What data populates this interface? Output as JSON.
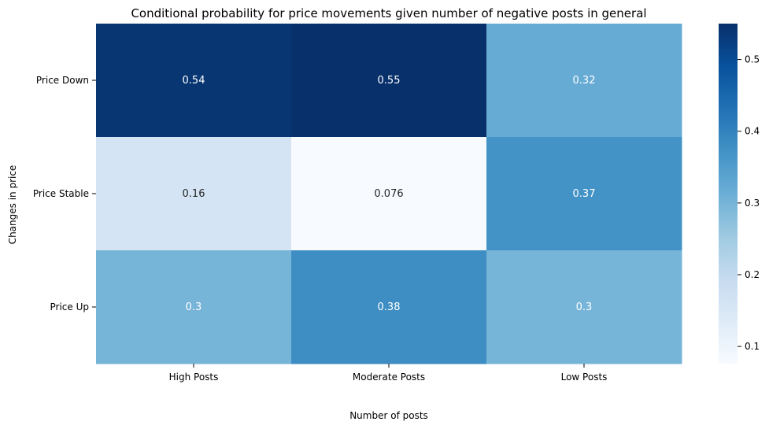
{
  "chart_data": {
    "type": "heatmap",
    "title": "Conditional probability for price movements given number of negative posts in general",
    "xlabel": "Number of posts",
    "ylabel": "Changes in price",
    "x_categories": [
      "High Posts",
      "Moderate Posts",
      "Low Posts"
    ],
    "y_categories": [
      "Price Down",
      "Price Stable",
      "Price Up"
    ],
    "values": [
      [
        0.54,
        0.55,
        0.32
      ],
      [
        0.16,
        0.076,
        0.37
      ],
      [
        0.3,
        0.38,
        0.3
      ]
    ],
    "value_labels": [
      [
        "0.54",
        "0.55",
        "0.32"
      ],
      [
        "0.16",
        "0.076",
        "0.37"
      ],
      [
        "0.3",
        "0.38",
        "0.3"
      ]
    ],
    "colormap": "Blues",
    "colorbar": {
      "range": [
        0.076,
        0.55
      ],
      "ticks": [
        0.1,
        0.2,
        0.3,
        0.4,
        0.5
      ],
      "tick_labels": [
        "0.1",
        "0.2",
        "0.3",
        "0.4",
        "0.5"
      ]
    },
    "grid": false
  }
}
